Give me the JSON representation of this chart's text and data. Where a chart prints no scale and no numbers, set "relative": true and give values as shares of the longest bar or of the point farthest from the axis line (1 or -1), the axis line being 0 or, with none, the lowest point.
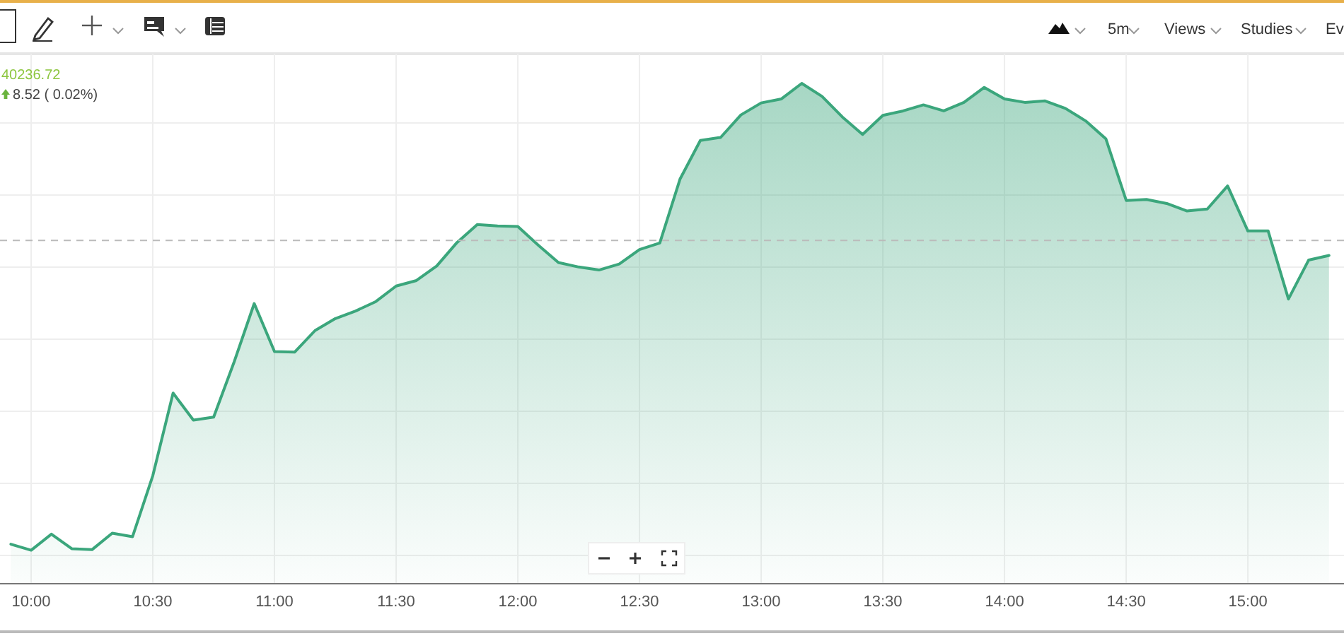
{
  "chart_data": {
    "type": "area",
    "relative": true,
    "x": [
      9.9167,
      10,
      10.0833,
      10.1667,
      10.25,
      10.3333,
      10.4167,
      10.5,
      10.5833,
      10.6667,
      10.75,
      10.8333,
      10.9167,
      11,
      11.0833,
      11.1667,
      11.25,
      11.3333,
      11.4167,
      11.5,
      11.5833,
      11.6667,
      11.75,
      11.8333,
      11.9167,
      12,
      12.0833,
      12.1667,
      12.25,
      12.3333,
      12.4167,
      12.5,
      12.5833,
      12.6667,
      12.75,
      12.8333,
      12.9167,
      13,
      13.0833,
      13.1667,
      13.25,
      13.3333,
      13.4167,
      13.5,
      13.5833,
      13.6667,
      13.75,
      13.8333,
      13.9167,
      14,
      14.0833,
      14.1667,
      14.25,
      14.3333,
      14.4167,
      14.5,
      14.5833,
      14.6667,
      14.75,
      14.8333,
      14.9167,
      15,
      15.0833,
      15.1667,
      15.25,
      15.3333
    ],
    "series": [
      {
        "color": "#3ba67c",
        "values": [
          0.079,
          0.067,
          0.099,
          0.07,
          0.068,
          0.101,
          0.094,
          0.216,
          0.381,
          0.327,
          0.333,
          0.442,
          0.56,
          0.464,
          0.463,
          0.506,
          0.53,
          0.545,
          0.564,
          0.595,
          0.606,
          0.635,
          0.682,
          0.718,
          0.715,
          0.714,
          0.677,
          0.642,
          0.633,
          0.627,
          0.639,
          0.668,
          0.681,
          0.809,
          0.886,
          0.892,
          0.937,
          0.961,
          0.969,
          1,
          0.974,
          0.933,
          0.898,
          0.936,
          0.945,
          0.957,
          0.945,
          0.962,
          0.992,
          0.969,
          0.962,
          0.965,
          0.95,
          0.925,
          0.889,
          0.766,
          0.768,
          0.76,
          0.745,
          0.749,
          0.795,
          0.705,
          0.705,
          0.569,
          0.647,
          0.656
        ]
      }
    ],
    "xlim": [
      9.872,
      15.395
    ],
    "xticks": [
      {
        "value": 10,
        "label": "10:00"
      },
      {
        "value": 10.5,
        "label": "10:30"
      },
      {
        "value": 11,
        "label": "11:00"
      },
      {
        "value": 11.5,
        "label": "11:30"
      },
      {
        "value": 12,
        "label": "12:00"
      },
      {
        "value": 12.5,
        "label": "12:30"
      },
      {
        "value": 13,
        "label": "13:00"
      },
      {
        "value": 13.5,
        "label": "13:30"
      },
      {
        "value": 14,
        "label": "14:00"
      },
      {
        "value": 14.5,
        "label": "14:30"
      },
      {
        "value": 15,
        "label": "15:00"
      }
    ],
    "grid": true,
    "ref_lines": [
      {
        "axis": "y",
        "value": 0.686,
        "color": "#bbbbbb",
        "line_style": "dashed"
      }
    ],
    "annotations": [
      "40236.72",
      "8.52 ( 0.02%)",
      "5m",
      "Views",
      "Studies",
      "Ev"
    ]
  }
}
